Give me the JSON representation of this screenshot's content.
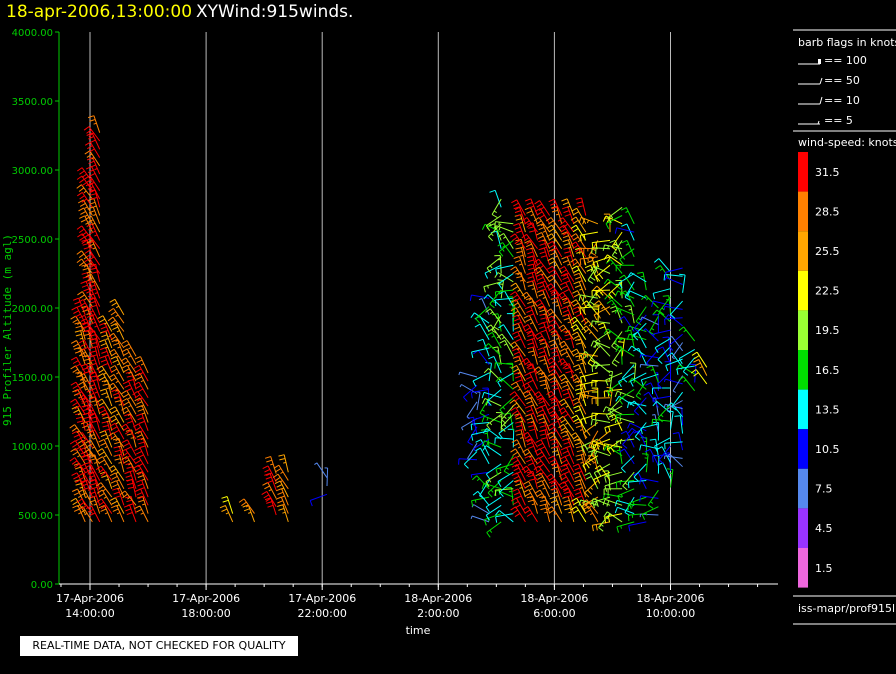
{
  "header": {
    "date": "18-apr-2006,13:00:00",
    "title": "XYWind:915winds."
  },
  "quality_note": "REAL-TIME DATA, NOT CHECKED FOR QUALITY",
  "legend": {
    "barb_title": "barb flags in knots",
    "barb_items": [
      "== 100",
      "== 50",
      "== 10",
      "== 5"
    ],
    "speed_title": "wind-speed: knots",
    "speed_scale": [
      {
        "label": "31.5",
        "color": "#ff0000"
      },
      {
        "label": "28.5",
        "color": "#ff8000"
      },
      {
        "label": "25.5",
        "color": "#ffa500"
      },
      {
        "label": "22.5",
        "color": "#ffff00"
      },
      {
        "label": "19.5",
        "color": "#99ff33"
      },
      {
        "label": "16.5",
        "color": "#00dd00"
      },
      {
        "label": "13.5",
        "color": "#00ffff"
      },
      {
        "label": "10.5",
        "color": "#0000ff"
      },
      {
        "label": "7.5",
        "color": "#5588ee"
      },
      {
        "label": "4.5",
        "color": "#9933ff"
      },
      {
        "label": "1.5",
        "color": "#ee66dd"
      }
    ],
    "source": "iss-mapr/prof915l"
  },
  "chart_data": {
    "type": "scatter",
    "ylabel": "915 Profiler Altitude (m agl)",
    "xlabel": "time",
    "ylim": [
      0,
      4000
    ],
    "y_ticks": [
      "0.00",
      "500.00",
      "1000.00",
      "1500.00",
      "2000.00",
      "2500.00",
      "3000.00",
      "3500.00",
      "4000.00"
    ],
    "x_ticks": [
      {
        "date": "17-Apr-2006",
        "time": "14:00:00"
      },
      {
        "date": "17-Apr-2006",
        "time": "18:00:00"
      },
      {
        "date": "17-Apr-2006",
        "time": "22:00:00"
      },
      {
        "date": "18-Apr-2006",
        "time": "2:00:00"
      },
      {
        "date": "18-Apr-2006",
        "time": "6:00:00"
      },
      {
        "date": "18-Apr-2006",
        "time": "10:00:00"
      }
    ],
    "grid": "vertical",
    "profiles": [
      {
        "time": "17-Apr-2006 13:50",
        "bottom": 450,
        "top": 1950,
        "speed": 30
      },
      {
        "time": "17-Apr-2006 14:05",
        "bottom": 450,
        "top": 2950,
        "speed": 31
      },
      {
        "time": "17-Apr-2006 14:20",
        "bottom": 450,
        "top": 3300,
        "speed": 32
      },
      {
        "time": "17-Apr-2006 14:45",
        "bottom": 450,
        "top": 1850,
        "speed": 28
      },
      {
        "time": "17-Apr-2006 15:10",
        "bottom": 450,
        "top": 1950,
        "speed": 29
      },
      {
        "time": "17-Apr-2006 15:35",
        "bottom": 450,
        "top": 1650,
        "speed": 31
      },
      {
        "time": "17-Apr-2006 16:00",
        "bottom": 450,
        "top": 1550,
        "speed": 31
      },
      {
        "time": "17-Apr-2006 18:55",
        "bottom": 450,
        "top": 550,
        "speed": 27
      },
      {
        "time": "17-Apr-2006 19:40",
        "bottom": 450,
        "top": 550,
        "speed": 26
      },
      {
        "time": "17-Apr-2006 20:25",
        "bottom": 500,
        "top": 850,
        "speed": 30
      },
      {
        "time": "17-Apr-2006 20:50",
        "bottom": 450,
        "top": 850,
        "speed": 29
      },
      {
        "time": "17-Apr-2006 22:10",
        "bottom": 650,
        "top": 800,
        "speed": 11
      },
      {
        "time": "18-Apr-2006 3:20",
        "bottom": 900,
        "top": 1500,
        "speed": 10
      },
      {
        "time": "18-Apr-2006 3:45",
        "bottom": 450,
        "top": 2100,
        "speed": 12
      },
      {
        "time": "18-Apr-2006 4:10",
        "bottom": 450,
        "top": 2800,
        "speed": 17
      },
      {
        "time": "18-Apr-2006 4:35",
        "bottom": 450,
        "top": 2650,
        "speed": 16
      },
      {
        "time": "18-Apr-2006 5:00",
        "bottom": 450,
        "top": 2700,
        "speed": 30
      },
      {
        "time": "18-Apr-2006 5:25",
        "bottom": 450,
        "top": 2700,
        "speed": 31
      },
      {
        "time": "18-Apr-2006 5:50",
        "bottom": 450,
        "top": 2700,
        "speed": 31
      },
      {
        "time": "18-Apr-2006 6:15",
        "bottom": 450,
        "top": 2700,
        "speed": 30
      },
      {
        "time": "18-Apr-2006 6:40",
        "bottom": 450,
        "top": 2700,
        "speed": 29
      },
      {
        "time": "18-Apr-2006 7:05",
        "bottom": 450,
        "top": 2700,
        "speed": 27
      },
      {
        "time": "18-Apr-2006 7:30",
        "bottom": 450,
        "top": 2650,
        "speed": 24
      },
      {
        "time": "18-Apr-2006 7:55",
        "bottom": 450,
        "top": 2600,
        "speed": 22
      },
      {
        "time": "18-Apr-2006 8:20",
        "bottom": 450,
        "top": 2750,
        "speed": 20
      },
      {
        "time": "18-Apr-2006 8:45",
        "bottom": 450,
        "top": 2650,
        "speed": 15
      },
      {
        "time": "18-Apr-2006 9:10",
        "bottom": 450,
        "top": 2200,
        "speed": 14
      },
      {
        "time": "18-Apr-2006 9:35",
        "bottom": 500,
        "top": 2050,
        "speed": 12
      },
      {
        "time": "18-Apr-2006 10:00",
        "bottom": 700,
        "top": 2300,
        "speed": 13
      },
      {
        "time": "18-Apr-2006 10:25",
        "bottom": 850,
        "top": 2300,
        "speed": 11
      },
      {
        "time": "18-Apr-2006 10:50",
        "bottom": 1400,
        "top": 1800,
        "speed": 15
      },
      {
        "time": "18-Apr-2006 11:15",
        "bottom": 1450,
        "top": 1600,
        "speed": 26
      }
    ]
  }
}
